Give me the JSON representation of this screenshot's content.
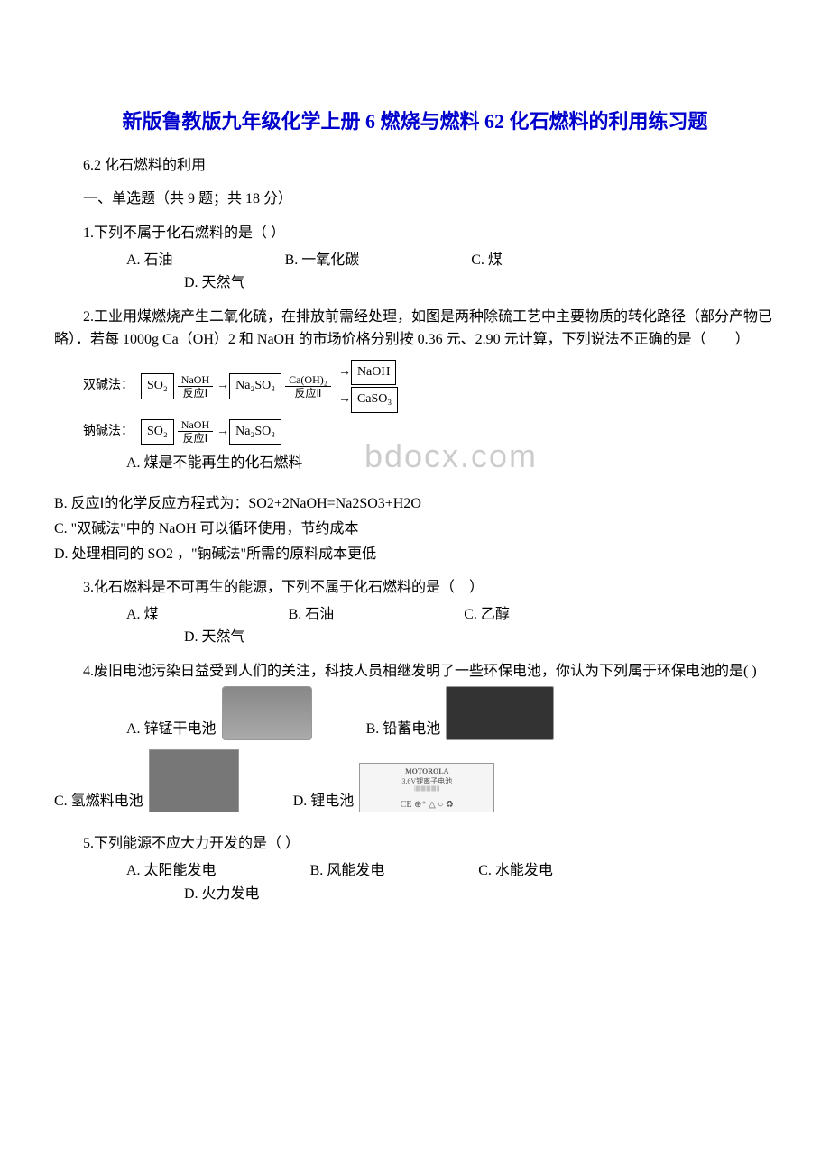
{
  "title": "新版鲁教版九年级化学上册 6 燃烧与燃料 62 化石燃料的利用练习题",
  "subtitle": "6.2 化石燃料的利用",
  "section1_header": "一、单选题（共 9 题；共 18 分）",
  "q1": {
    "stem": "1.下列不属于化石燃料的是（  ）",
    "A": "A. 石油",
    "B": "B. 一氧化碳",
    "C": "C. 煤",
    "D": "D. 天然气"
  },
  "q2": {
    "stem": "2.工业用煤燃烧产生二氧化硫，在排放前需经处理，如图是两种除硫工艺中主要物质的转化路径（部分产物已略）．若每 1000g Ca（OH）2 和 NaOH 的市场价格分别按 0.36 元、2.90 元计算，下列说法不正确的是（　　）",
    "diagram": {
      "method1_label": "双碱法：",
      "method2_label": "钠碱法：",
      "box_so2": "SO₂",
      "r1_top": "NaOH",
      "r1_bottom": "反应Ⅰ",
      "box_na2so3": "Na₂SO₃",
      "r2_top": "Ca(OH)₂",
      "r2_bottom": "反应Ⅱ",
      "box_naoh": "NaOH",
      "box_caso3": "CaSO₃"
    },
    "A": "A. 煤是不能再生的化石燃料",
    "B": "B. 反应Ⅰ的化学反应方程式为：SO2+2NaOH=Na2SO3+H2O",
    "C": "C. \"双碱法\"中的 NaOH 可以循环使用，节约成本",
    "D": "D. 处理相同的 SO2 ，\"钠碱法\"所需的原料成本更低"
  },
  "watermark_text": "bdocx.com",
  "q3": {
    "stem": "3.化石燃料是不可再生的能源，下列不属于化石燃料的是（　）",
    "A": "A. 煤",
    "B": "B. 石油",
    "C": "C. 乙醇",
    "D": "D. 天然气"
  },
  "q4": {
    "stem": "4.废旧电池污染日益受到人们的关注，科技人员相继发明了一些环保电池，你认为下列属于环保电池的是(  )",
    "A": "A. 锌锰干电池",
    "B": "B. 铅蓄电池",
    "C": "C. 氢燃料电池",
    "D": "D. 锂电池",
    "motorola": "MOTOROLA",
    "moto_sub": "3.6V锂离子电池",
    "ce_line": "CE ⊕⁺ △ ○ ♻"
  },
  "q5": {
    "stem": "5.下列能源不应大力开发的是（  ）",
    "A": "A. 太阳能发电",
    "B": "B. 风能发电",
    "C": "C. 水能发电",
    "D": "D. 火力发电"
  },
  "colors": {
    "title_color": "#0000cc",
    "text_color": "#000000",
    "watermark_color": "#cccccc",
    "background": "#ffffff"
  },
  "typography": {
    "title_fontsize": 22,
    "body_fontsize": 16,
    "diagram_fontsize": 14
  }
}
